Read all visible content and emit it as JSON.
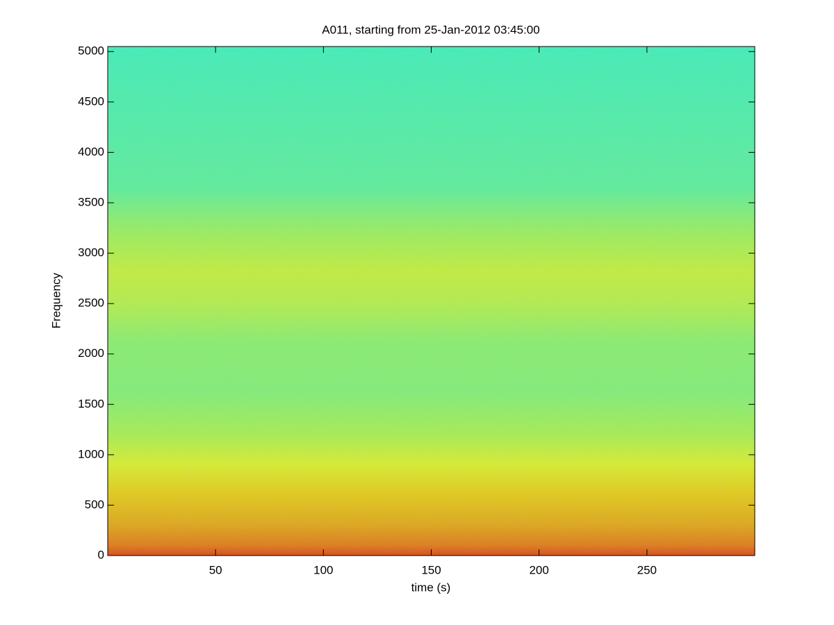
{
  "chart_data": {
    "type": "spectrogram",
    "title": "A011, starting from 25-Jan-2012 03:45:00",
    "x_label": "time (s)",
    "y_label": "Frequency",
    "xlim": [
      0,
      300
    ],
    "xticks": [
      50,
      100,
      150,
      200,
      250
    ],
    "ylim": [
      0,
      5050
    ],
    "yticks": [
      0,
      500,
      1000,
      1500,
      2000,
      2500,
      3000,
      3500,
      4000,
      4500,
      5000
    ],
    "colormap": "jet"
  }
}
